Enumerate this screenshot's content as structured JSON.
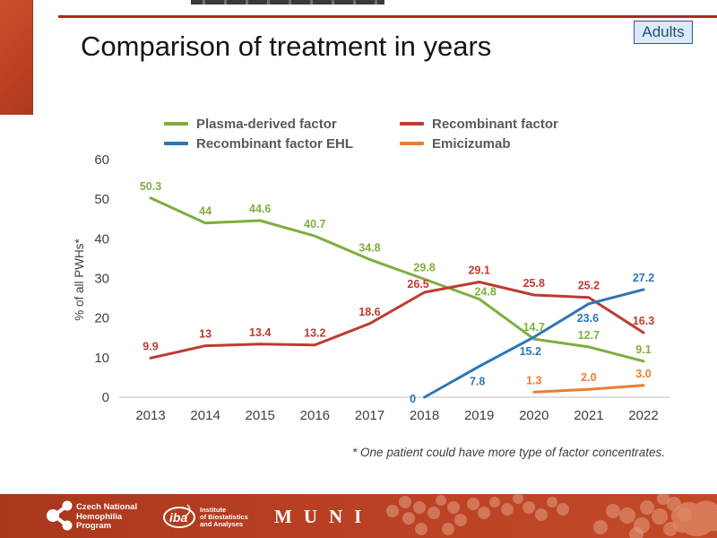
{
  "slide": {
    "title": "Comparison of treatment in years",
    "badge": "Adults",
    "footnote": "* One patient could have more type of factor concentrates."
  },
  "colors": {
    "brand_red": "#b94023",
    "title_rule_red": "#a8291e",
    "badge_bg": "#dce9f7",
    "badge_border": "#2f5496",
    "badge_text": "#1f4e79",
    "legend_text": "#595959",
    "axis_text": "#404040",
    "zero_gridline": "#c9c9c9"
  },
  "footer": {
    "logo1": {
      "lines": [
        "Czech National",
        "Hemophilia",
        "Program"
      ]
    },
    "logo2": {
      "abbr": "iba",
      "lines": [
        "Institute",
        "of Biostatistics",
        "and Analyses"
      ]
    },
    "logo3": "MUNI"
  },
  "chart_data": {
    "type": "line",
    "x": [
      2013,
      2014,
      2015,
      2016,
      2017,
      2018,
      2019,
      2020,
      2021,
      2022
    ],
    "ylabel": "% of all PWHs*",
    "ylim": [
      0,
      60
    ],
    "yticks": [
      0,
      10,
      20,
      30,
      40,
      50,
      60
    ],
    "grid": "zero-line-only",
    "legend_position": "top",
    "series": [
      {
        "name": "Plasma-derived factor",
        "color": "#7eae3f",
        "values": [
          50.3,
          44,
          44.6,
          40.7,
          34.8,
          29.8,
          24.8,
          14.7,
          12.7,
          9.1
        ],
        "labels": [
          "50.3",
          "44",
          "44.6",
          "40.7",
          "34.8",
          "29.8",
          "24.8",
          "14.7",
          "12.7",
          "9.1"
        ]
      },
      {
        "name": "Recombinant factor",
        "color": "#be3b31",
        "values": [
          9.9,
          13,
          13.4,
          13.2,
          18.6,
          26.5,
          29.1,
          25.8,
          25.2,
          16.3
        ],
        "labels": [
          "9.9",
          "13",
          "13.4",
          "13.2",
          "18.6",
          "26.5",
          "29.1",
          "25.8",
          "25.2",
          "16.3"
        ]
      },
      {
        "name": "Recombinant factor EHL",
        "color": "#2e75b6",
        "values": [
          null,
          null,
          null,
          null,
          null,
          0,
          7.8,
          15.2,
          23.6,
          27.2
        ],
        "labels": [
          null,
          null,
          null,
          null,
          null,
          "0",
          "7.8",
          "15.2",
          "23.6",
          "27.2"
        ]
      },
      {
        "name": "Emicizumab",
        "color": "#ed7d31",
        "values": [
          null,
          null,
          null,
          null,
          null,
          null,
          null,
          1.3,
          2.0,
          3.0
        ],
        "labels": [
          null,
          null,
          null,
          null,
          null,
          null,
          null,
          "1.3",
          "2.0",
          "3.0"
        ]
      }
    ]
  }
}
